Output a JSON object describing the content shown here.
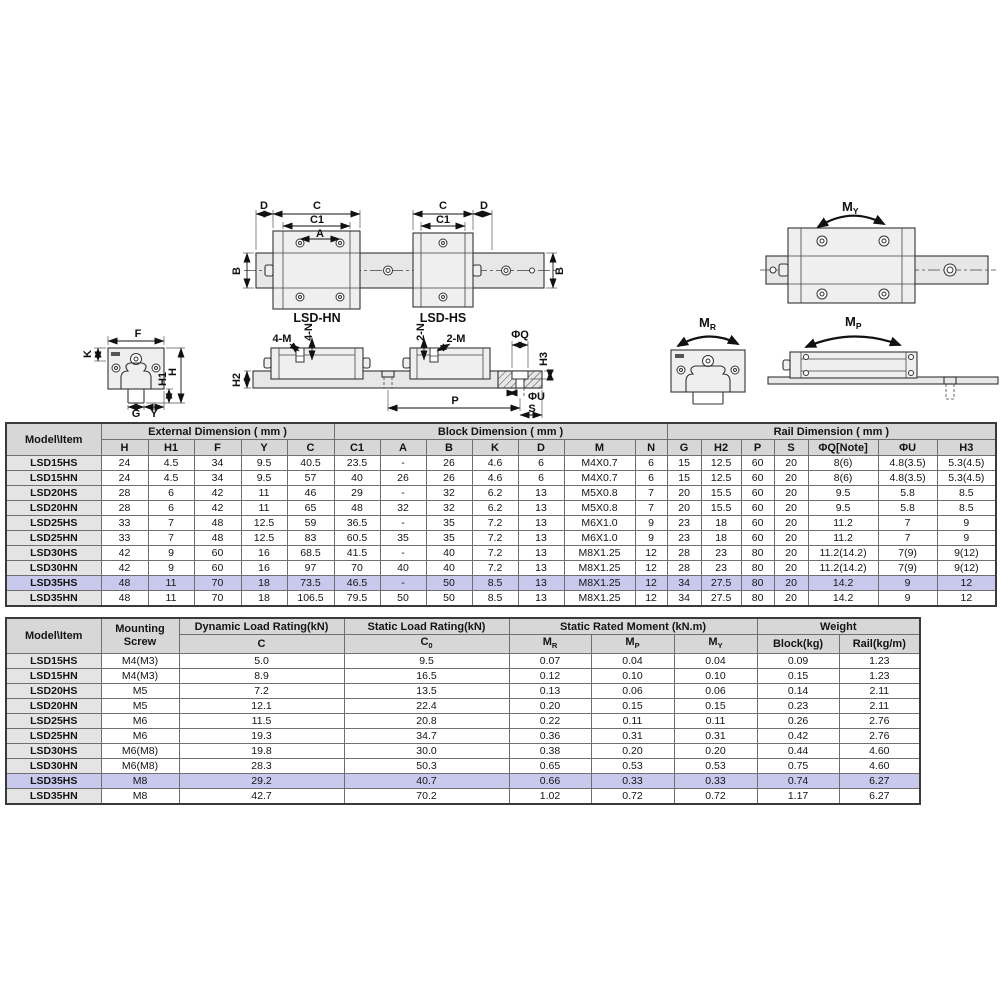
{
  "highlight_color": "#c9c9ee",
  "drawings": {
    "top_view": {
      "label_d_left": "D",
      "label_c_left": "C",
      "label_c1_left": "C1",
      "label_a": "A",
      "label_c_right": "C",
      "label_c1_right": "C1",
      "label_d_right": "D",
      "label_b_left": "B",
      "label_b_right": "B",
      "caption_left": "LSD-HN",
      "caption_right": "LSD-HS"
    },
    "my_view": {
      "moment_base": "M",
      "moment_sub": "Y"
    },
    "front_view": {
      "label_k": "K",
      "label_f": "F",
      "label_h1": "H1",
      "label_h": "H",
      "label_g": "G",
      "label_y": "Y"
    },
    "side_view": {
      "label_4m": "4-M",
      "label_4n": "4-N",
      "label_2n": "2-N",
      "label_2m": "2-M",
      "label_phiq": "ΦQ",
      "label_h3": "H3",
      "label_h2": "H2",
      "label_p": "P",
      "label_phiu": "ΦU",
      "label_s": "S"
    },
    "mr_view": {
      "moment_base": "M",
      "moment_sub": "R"
    },
    "mp_view": {
      "moment_base": "M",
      "moment_sub": "P"
    }
  },
  "table1": {
    "corner": "Model\\Item",
    "groups": {
      "external": "External Dimension ( mm )",
      "block": "Block Dimension ( mm )",
      "rail": "Rail Dimension ( mm )"
    },
    "columns": [
      "H",
      "H1",
      "F",
      "Y",
      "C",
      "C1",
      "A",
      "B",
      "K",
      "D",
      "M",
      "N",
      "G",
      "H2",
      "P",
      "S",
      "ΦQ[Note]",
      "ΦU",
      "H3"
    ],
    "rows": [
      {
        "model": "LSD15HS",
        "highlight": false,
        "values": [
          "24",
          "4.5",
          "34",
          "9.5",
          "40.5",
          "23.5",
          "-",
          "26",
          "4.6",
          "6",
          "M4X0.7",
          "6",
          "15",
          "12.5",
          "60",
          "20",
          "8(6)",
          "4.8(3.5)",
          "5.3(4.5)"
        ]
      },
      {
        "model": "LSD15HN",
        "highlight": false,
        "values": [
          "24",
          "4.5",
          "34",
          "9.5",
          "57",
          "40",
          "26",
          "26",
          "4.6",
          "6",
          "M4X0.7",
          "6",
          "15",
          "12.5",
          "60",
          "20",
          "8(6)",
          "4.8(3.5)",
          "5.3(4.5)"
        ]
      },
      {
        "model": "LSD20HS",
        "highlight": false,
        "values": [
          "28",
          "6",
          "42",
          "11",
          "46",
          "29",
          "-",
          "32",
          "6.2",
          "13",
          "M5X0.8",
          "7",
          "20",
          "15.5",
          "60",
          "20",
          "9.5",
          "5.8",
          "8.5"
        ]
      },
      {
        "model": "LSD20HN",
        "highlight": false,
        "values": [
          "28",
          "6",
          "42",
          "11",
          "65",
          "48",
          "32",
          "32",
          "6.2",
          "13",
          "M5X0.8",
          "7",
          "20",
          "15.5",
          "60",
          "20",
          "9.5",
          "5.8",
          "8.5"
        ]
      },
      {
        "model": "LSD25HS",
        "highlight": false,
        "values": [
          "33",
          "7",
          "48",
          "12.5",
          "59",
          "36.5",
          "-",
          "35",
          "7.2",
          "13",
          "M6X1.0",
          "9",
          "23",
          "18",
          "60",
          "20",
          "11.2",
          "7",
          "9"
        ]
      },
      {
        "model": "LSD25HN",
        "highlight": false,
        "values": [
          "33",
          "7",
          "48",
          "12.5",
          "83",
          "60.5",
          "35",
          "35",
          "7.2",
          "13",
          "M6X1.0",
          "9",
          "23",
          "18",
          "60",
          "20",
          "11.2",
          "7",
          "9"
        ]
      },
      {
        "model": "LSD30HS",
        "highlight": false,
        "values": [
          "42",
          "9",
          "60",
          "16",
          "68.5",
          "41.5",
          "-",
          "40",
          "7.2",
          "13",
          "M8X1.25",
          "12",
          "28",
          "23",
          "80",
          "20",
          "11.2(14.2)",
          "7(9)",
          "9(12)"
        ]
      },
      {
        "model": "LSD30HN",
        "highlight": false,
        "values": [
          "42",
          "9",
          "60",
          "16",
          "97",
          "70",
          "40",
          "40",
          "7.2",
          "13",
          "M8X1.25",
          "12",
          "28",
          "23",
          "80",
          "20",
          "11.2(14.2)",
          "7(9)",
          "9(12)"
        ]
      },
      {
        "model": "LSD35HS",
        "highlight": true,
        "values": [
          "48",
          "11",
          "70",
          "18",
          "73.5",
          "46.5",
          "-",
          "50",
          "8.5",
          "13",
          "M8X1.25",
          "12",
          "34",
          "27.5",
          "80",
          "20",
          "14.2",
          "9",
          "12"
        ]
      },
      {
        "model": "LSD35HN",
        "highlight": false,
        "values": [
          "48",
          "11",
          "70",
          "18",
          "106.5",
          "79.5",
          "50",
          "50",
          "8.5",
          "13",
          "M8X1.25",
          "12",
          "34",
          "27.5",
          "80",
          "20",
          "14.2",
          "9",
          "12"
        ]
      }
    ]
  },
  "table2": {
    "corner": "Model\\Item",
    "groups": {
      "screw": "Mounting Screw",
      "dynamic": "Dynamic Load Rating(kN)",
      "static": "Static Load Rating(kN)",
      "moment": "Static Rated Moment (kN.m)",
      "weight": "Weight"
    },
    "subs": {
      "c": "C",
      "c0_base": "C",
      "c0_sub": "0",
      "mr_base": "M",
      "mr_sub": "R",
      "mp_base": "M",
      "mp_sub": "P",
      "my_base": "M",
      "my_sub": "Y",
      "block": "Block(kg)",
      "rail": "Rail(kg/m)"
    },
    "rows": [
      {
        "model": "LSD15HS",
        "highlight": false,
        "values": [
          "M4(M3)",
          "5.0",
          "9.5",
          "0.07",
          "0.04",
          "0.04",
          "0.09",
          "1.23"
        ]
      },
      {
        "model": "LSD15HN",
        "highlight": false,
        "values": [
          "M4(M3)",
          "8.9",
          "16.5",
          "0.12",
          "0.10",
          "0.10",
          "0.15",
          "1.23"
        ]
      },
      {
        "model": "LSD20HS",
        "highlight": false,
        "values": [
          "M5",
          "7.2",
          "13.5",
          "0.13",
          "0.06",
          "0.06",
          "0.14",
          "2.11"
        ]
      },
      {
        "model": "LSD20HN",
        "highlight": false,
        "values": [
          "M5",
          "12.1",
          "22.4",
          "0.20",
          "0.15",
          "0.15",
          "0.23",
          "2.11"
        ]
      },
      {
        "model": "LSD25HS",
        "highlight": false,
        "values": [
          "M6",
          "11.5",
          "20.8",
          "0.22",
          "0.11",
          "0.11",
          "0.26",
          "2.76"
        ]
      },
      {
        "model": "LSD25HN",
        "highlight": false,
        "values": [
          "M6",
          "19.3",
          "34.7",
          "0.36",
          "0.31",
          "0.31",
          "0.42",
          "2.76"
        ]
      },
      {
        "model": "LSD30HS",
        "highlight": false,
        "values": [
          "M6(M8)",
          "19.8",
          "30.0",
          "0.38",
          "0.20",
          "0.20",
          "0.44",
          "4.60"
        ]
      },
      {
        "model": "LSD30HN",
        "highlight": false,
        "values": [
          "M6(M8)",
          "28.3",
          "50.3",
          "0.65",
          "0.53",
          "0.53",
          "0.75",
          "4.60"
        ]
      },
      {
        "model": "LSD35HS",
        "highlight": true,
        "values": [
          "M8",
          "29.2",
          "40.7",
          "0.66",
          "0.33",
          "0.33",
          "0.74",
          "6.27"
        ]
      },
      {
        "model": "LSD35HN",
        "highlight": false,
        "values": [
          "M8",
          "42.7",
          "70.2",
          "1.02",
          "0.72",
          "0.72",
          "1.17",
          "6.27"
        ]
      }
    ]
  }
}
